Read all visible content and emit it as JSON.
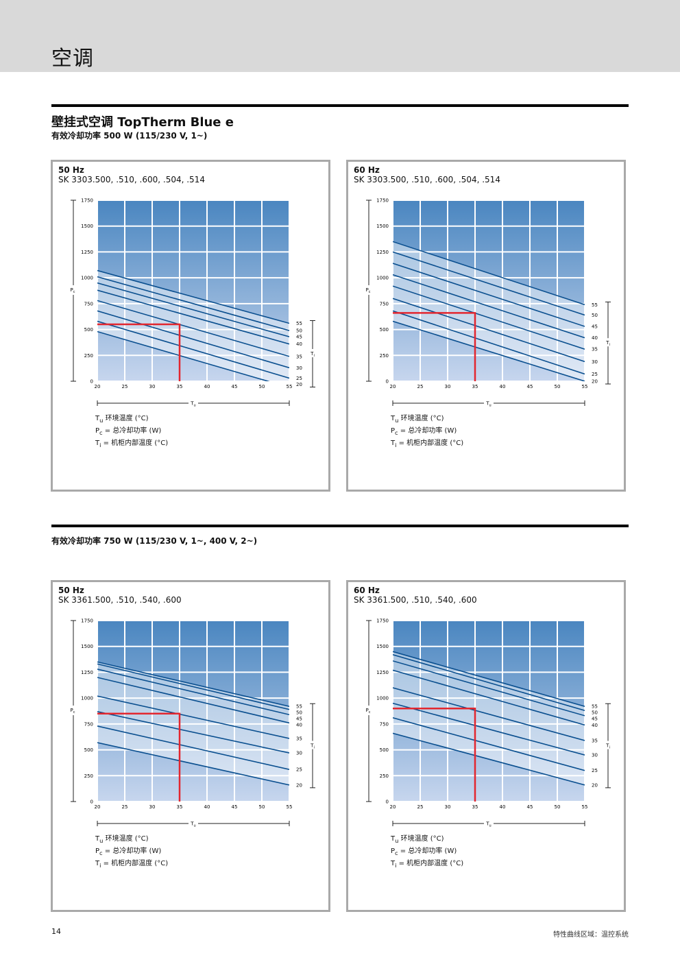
{
  "header": {
    "title": "空调"
  },
  "section": {
    "title": "壁挂式空调 TopTherm Blue e",
    "sub1": "有效冷却功率 500 W (115/230 V, 1~)",
    "sub2": "有效冷却功率 750 W (115/230 V, 1~, 400 V, 2~)"
  },
  "legend": {
    "tu_sym": "T",
    "tu_sub": "u",
    "tu_text": " 环境温度 (°C)",
    "pc_sym": "P",
    "pc_sub": "c",
    "pc_text": " = 总冷却功率 (W)",
    "ti_sym": "T",
    "ti_sub": "i",
    "ti_text": "  = 机柜内部温度 (°C)"
  },
  "panels": [
    {
      "freq": "50 Hz",
      "model": "SK 3303.500, .510, .600, .504, .514"
    },
    {
      "freq": "60 Hz",
      "model": "SK 3303.500, .510, .600, .504, .514"
    },
    {
      "freq": "50 Hz",
      "model": "SK 3361.500, .510, .540, .600"
    },
    {
      "freq": "60 Hz",
      "model": "SK 3361.500, .510, .540, .600"
    }
  ],
  "footer": {
    "page": "14",
    "text": "特性曲线区域：温控系统"
  },
  "colors": {
    "gradient_top": "#4a86c0",
    "gradient_bottom": "#c7d6ee",
    "curve": "#0a4f8f",
    "marker": "#e3262e",
    "grid": "#ffffff"
  },
  "chart_data": [
    {
      "type": "line",
      "x": [
        20,
        55
      ],
      "xlim": [
        20,
        55
      ],
      "ylim": [
        0,
        1750
      ],
      "xticks": [
        20,
        25,
        30,
        35,
        40,
        45,
        50,
        55
      ],
      "yticks": [
        0,
        250,
        500,
        750,
        1000,
        1250,
        1500,
        1750
      ],
      "xlabel_sym": "T",
      "xlabel_sub": "u",
      "ylabel_sym": "P",
      "ylabel_sub": "c",
      "ilabel_sym": "T",
      "ilabel_sub": "i",
      "series": [
        {
          "label": "55",
          "values": [
            1070,
            560
          ]
        },
        {
          "label": "50",
          "values": [
            1010,
            490
          ]
        },
        {
          "label": "45",
          "values": [
            950,
            430
          ]
        },
        {
          "label": "40",
          "values": [
            880,
            360
          ]
        },
        {
          "label": "35",
          "values": [
            780,
            240
          ]
        },
        {
          "label": "30",
          "values": [
            680,
            130
          ]
        },
        {
          "label": "25",
          "values": [
            580,
            30
          ]
        },
        {
          "label": "20",
          "values": [
            480,
            -60
          ]
        }
      ],
      "marker": {
        "x": 35,
        "y": 550
      }
    },
    {
      "type": "line",
      "x": [
        20,
        55
      ],
      "xlim": [
        20,
        55
      ],
      "ylim": [
        0,
        1750
      ],
      "xticks": [
        20,
        25,
        30,
        35,
        40,
        45,
        50,
        55
      ],
      "yticks": [
        0,
        250,
        500,
        750,
        1000,
        1250,
        1500,
        1750
      ],
      "xlabel_sym": "T",
      "xlabel_sub": "u",
      "ylabel_sym": "P",
      "ylabel_sub": "c",
      "ilabel_sym": "T",
      "ilabel_sub": "i",
      "series": [
        {
          "label": "55",
          "values": [
            1350,
            740
          ]
        },
        {
          "label": "50",
          "values": [
            1250,
            640
          ]
        },
        {
          "label": "45",
          "values": [
            1140,
            530
          ]
        },
        {
          "label": "40",
          "values": [
            1030,
            420
          ]
        },
        {
          "label": "35",
          "values": [
            920,
            310
          ]
        },
        {
          "label": "30",
          "values": [
            800,
            190
          ]
        },
        {
          "label": "25",
          "values": [
            680,
            70
          ]
        },
        {
          "label": "20",
          "values": [
            580,
            0
          ]
        }
      ],
      "marker": {
        "x": 35,
        "y": 660
      }
    },
    {
      "type": "line",
      "x": [
        20,
        55
      ],
      "xlim": [
        20,
        55
      ],
      "ylim": [
        0,
        1750
      ],
      "xticks": [
        20,
        25,
        30,
        35,
        40,
        45,
        50,
        55
      ],
      "yticks": [
        0,
        250,
        500,
        750,
        1000,
        1250,
        1500,
        1750
      ],
      "xlabel_sym": "T",
      "xlabel_sub": "u",
      "ylabel_sym": "P",
      "ylabel_sub": "c",
      "ilabel_sym": "T",
      "ilabel_sub": "i",
      "series": [
        {
          "label": "55",
          "values": [
            1350,
            920
          ]
        },
        {
          "label": "50",
          "values": [
            1330,
            890
          ]
        },
        {
          "label": "45",
          "values": [
            1280,
            840
          ]
        },
        {
          "label": "40",
          "values": [
            1200,
            760
          ]
        },
        {
          "label": "35",
          "values": [
            1020,
            610
          ]
        },
        {
          "label": "30",
          "values": [
            870,
            470
          ]
        },
        {
          "label": "25",
          "values": [
            730,
            310
          ]
        },
        {
          "label": "20",
          "values": [
            570,
            160
          ]
        }
      ],
      "marker": {
        "x": 35,
        "y": 850
      }
    },
    {
      "type": "line",
      "x": [
        20,
        55
      ],
      "xlim": [
        20,
        55
      ],
      "ylim": [
        0,
        1750
      ],
      "xticks": [
        20,
        25,
        30,
        35,
        40,
        45,
        50,
        55
      ],
      "yticks": [
        0,
        250,
        500,
        750,
        1000,
        1250,
        1500,
        1750
      ],
      "xlabel_sym": "T",
      "xlabel_sub": "u",
      "ylabel_sym": "P",
      "ylabel_sub": "c",
      "ilabel_sym": "T",
      "ilabel_sub": "i",
      "series": [
        {
          "label": "55",
          "values": [
            1450,
            920
          ]
        },
        {
          "label": "50",
          "values": [
            1420,
            880
          ]
        },
        {
          "label": "45",
          "values": [
            1360,
            830
          ]
        },
        {
          "label": "40",
          "values": [
            1270,
            740
          ]
        },
        {
          "label": "35",
          "values": [
            1100,
            590
          ]
        },
        {
          "label": "30",
          "values": [
            950,
            450
          ]
        },
        {
          "label": "25",
          "values": [
            810,
            300
          ]
        },
        {
          "label": "20",
          "values": [
            660,
            160
          ]
        }
      ],
      "marker": {
        "x": 35,
        "y": 900
      }
    }
  ]
}
